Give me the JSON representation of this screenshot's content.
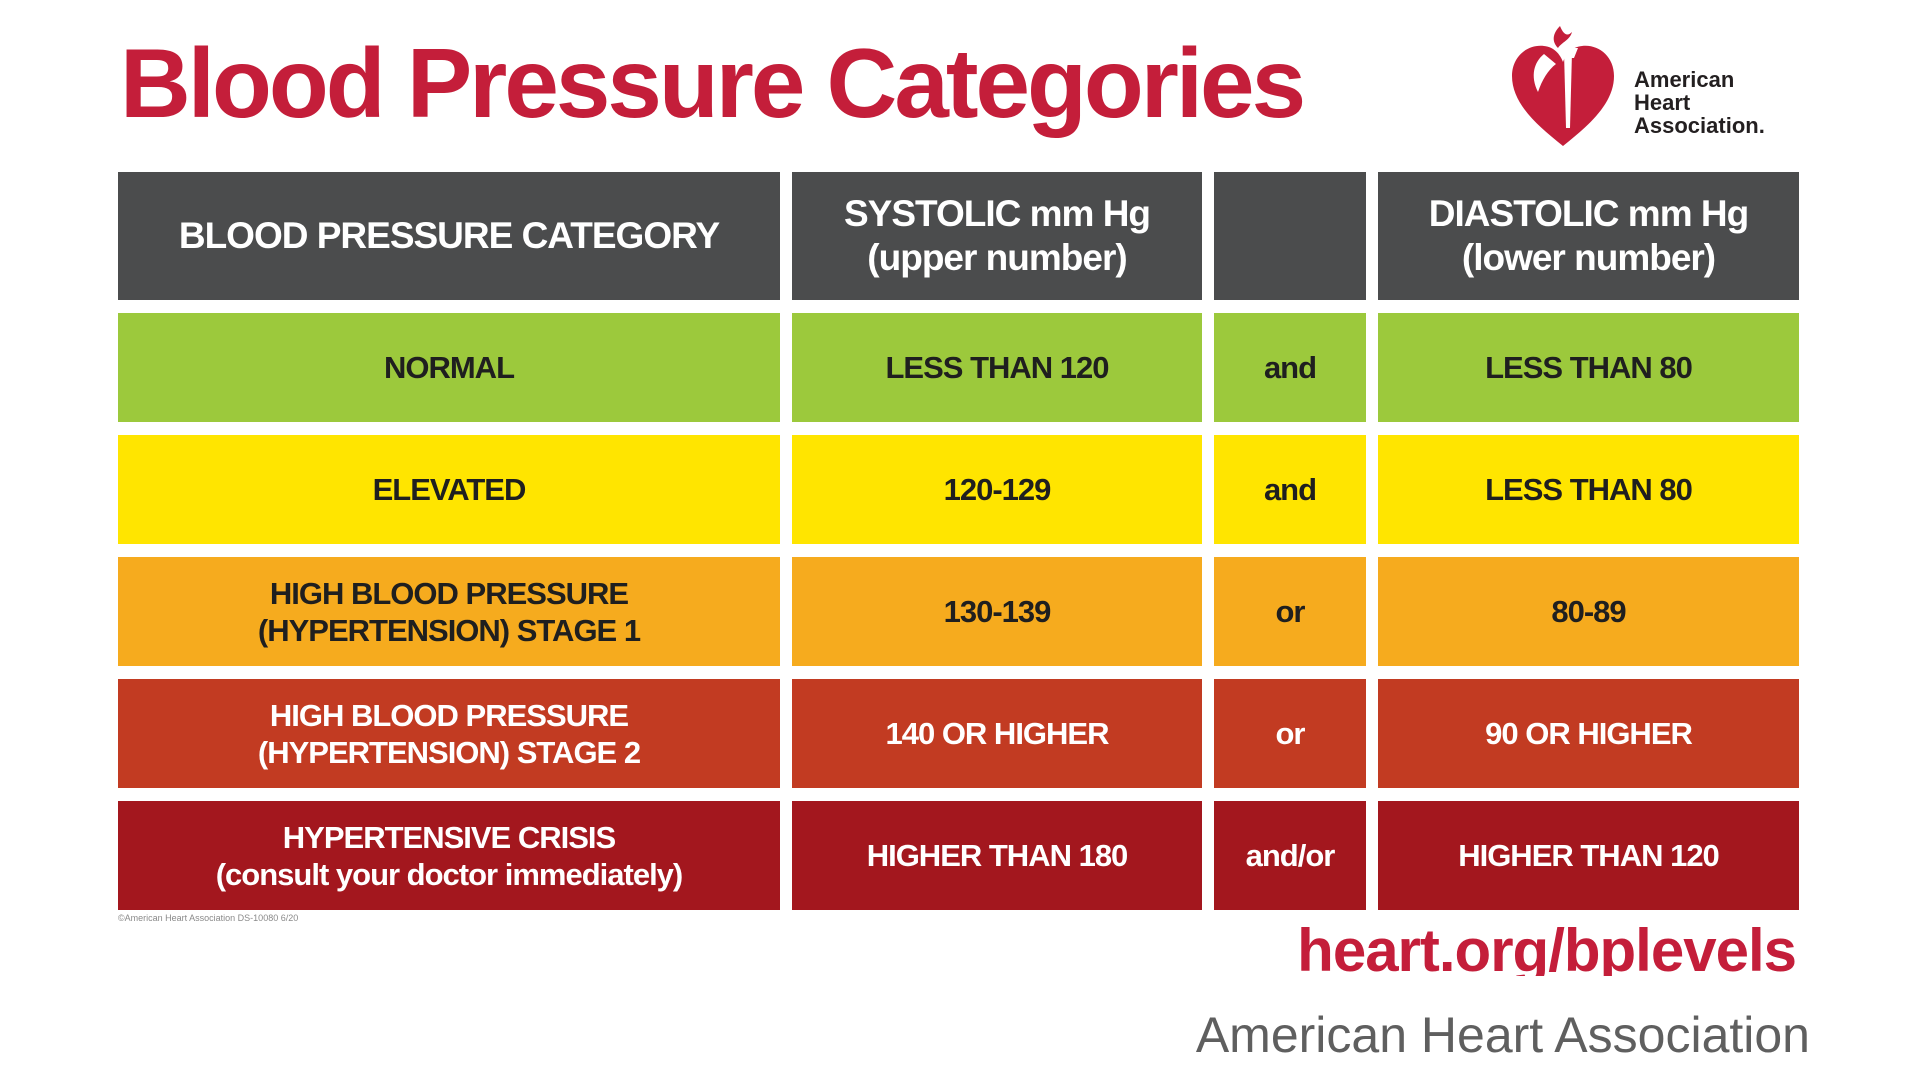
{
  "title": "Blood Pressure Categories",
  "logo": {
    "line1": "American",
    "line2": "Heart",
    "line3": "Association.",
    "icon": "heart-torch-logo-icon",
    "color": "#c41e3a"
  },
  "table": {
    "headers": {
      "category": "BLOOD PRESSURE CATEGORY",
      "systolic": "SYSTOLIC mm Hg\n(upper number)",
      "connector": "",
      "diastolic": "DIASTOLIC mm Hg\n(lower number)"
    },
    "header_color": "#4b4c4d",
    "rows": [
      {
        "category": "NORMAL",
        "systolic": "LESS THAN 120",
        "connector": "and",
        "diastolic": "LESS THAN 80",
        "color": "#9cc93c",
        "text_color": "#1f1f1f"
      },
      {
        "category": "ELEVATED",
        "systolic": "120-129",
        "connector": "and",
        "diastolic": "LESS THAN 80",
        "color": "#ffe500",
        "text_color": "#1f1f1f"
      },
      {
        "category": "HIGH BLOOD PRESSURE\n(HYPERTENSION) STAGE 1",
        "systolic": "130-139",
        "connector": "or",
        "diastolic": "80-89",
        "color": "#f6ab1e",
        "text_color": "#1f1f1f"
      },
      {
        "category": "HIGH BLOOD PRESSURE\n(HYPERTENSION) STAGE 2",
        "systolic": "140 OR HIGHER",
        "connector": "or",
        "diastolic": "90 OR HIGHER",
        "color": "#c23b22",
        "text_color": "#ffffff"
      },
      {
        "category": "HYPERTENSIVE CRISIS\n(consult your doctor immediately)",
        "systolic": "HIGHER THAN 180",
        "connector": "and/or",
        "diastolic": "HIGHER THAN 120",
        "color": "#a3171e",
        "text_color": "#ffffff"
      }
    ]
  },
  "footnote": "©American Heart Association  DS-10080 6/20",
  "url": "heart.org/bplevels",
  "caption": "American Heart Association"
}
